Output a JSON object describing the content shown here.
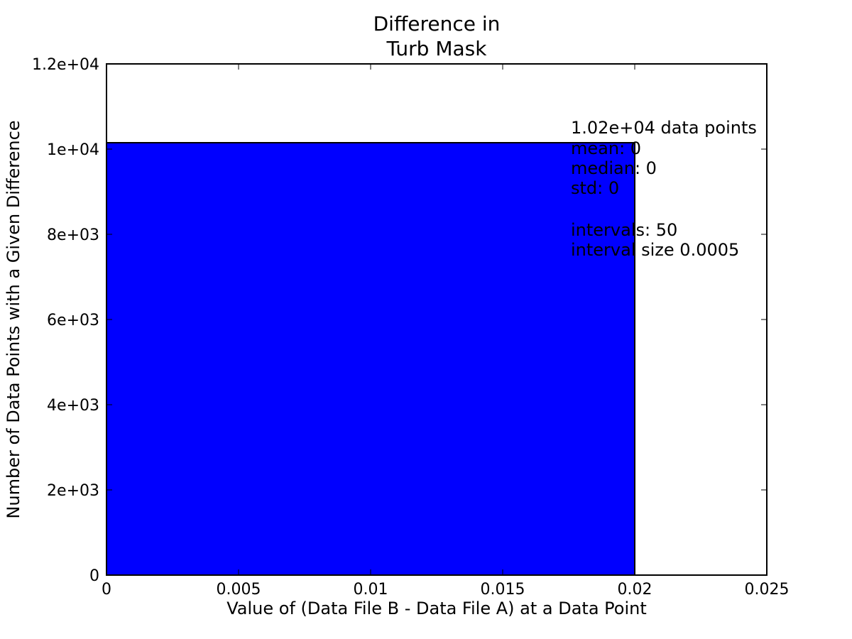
{
  "chart_data": {
    "type": "bar",
    "title_lines": [
      "Difference in",
      "Turb Mask"
    ],
    "xlabel": "Value of (Data File B - Data File A) at a Data Point",
    "ylabel": "Number of Data Points with a Given Difference",
    "xlim": [
      0,
      0.025
    ],
    "ylim": [
      0,
      12000
    ],
    "xticks": [
      {
        "value": 0,
        "label": "0"
      },
      {
        "value": 0.005,
        "label": "0.005"
      },
      {
        "value": 0.01,
        "label": "0.01"
      },
      {
        "value": 0.015,
        "label": "0.015"
      },
      {
        "value": 0.02,
        "label": "0.02"
      },
      {
        "value": 0.025,
        "label": "0.025"
      }
    ],
    "yticks": [
      {
        "value": 0,
        "label": "0"
      },
      {
        "value": 2000,
        "label": "2e+03"
      },
      {
        "value": 4000,
        "label": "4e+03"
      },
      {
        "value": 6000,
        "label": "6e+03"
      },
      {
        "value": 8000,
        "label": "8e+03"
      },
      {
        "value": 10000,
        "label": "1e+04"
      },
      {
        "value": 12000,
        "label": "1.2e+04"
      }
    ],
    "bars": [
      {
        "x_start": 0,
        "x_end": 0.02,
        "value": 10150
      }
    ],
    "bar_color": "#0000ff",
    "grid": false,
    "annotation_lines": [
      "1.02e+04 data points",
      "mean: 0",
      "median: 0",
      "std: 0",
      "",
      "intervals: 50",
      "interval size 0.0005"
    ]
  }
}
